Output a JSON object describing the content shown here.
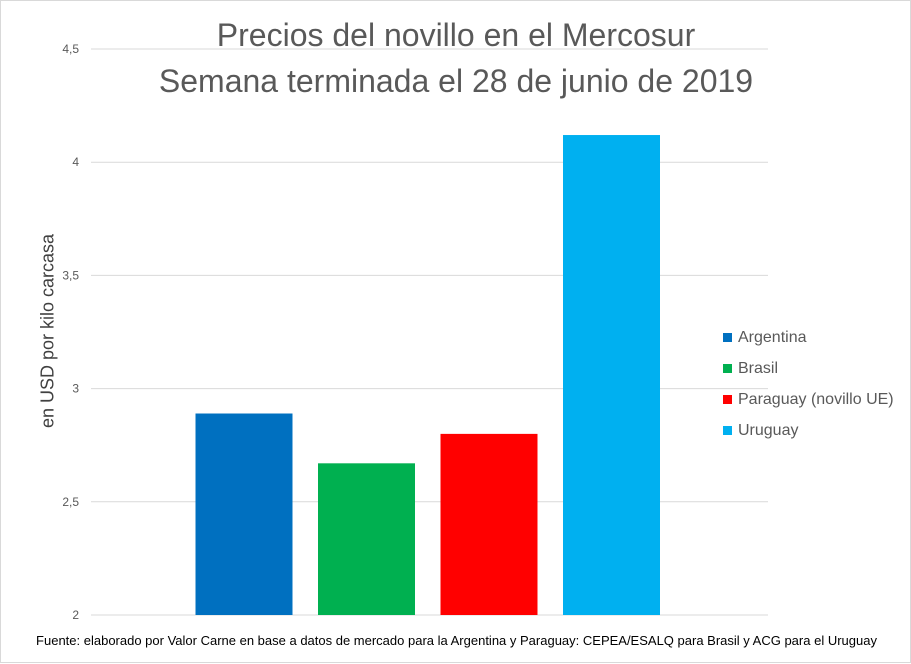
{
  "chart_data": {
    "type": "bar",
    "title_lines": [
      "Precios del novillo en el Mercosur",
      "Semana terminada el 28 de junio de 2019"
    ],
    "ylabel": "en USD por kilo carcasa",
    "xlabel": "",
    "ylim": [
      2,
      4.5
    ],
    "yticks": [
      2,
      2.5,
      3,
      3.5,
      4,
      4.5
    ],
    "ytick_labels": [
      "2",
      "2,5",
      "3",
      "3,5",
      "4",
      "4,5"
    ],
    "grid": true,
    "legend_position": "right",
    "categories": [
      "Argentina",
      "Brasil",
      "Paraguay (novillo UE)",
      "Uruguay"
    ],
    "values": [
      2.89,
      2.67,
      2.8,
      4.12
    ],
    "colors": [
      "#0070c0",
      "#00b050",
      "#ff0000",
      "#00b0f0"
    ]
  },
  "source_note": "Fuente: elaborado por Valor Carne en base a datos de mercado para la Argentina y Paraguay: CEPEA/ESALQ para Brasil y ACG para el Uruguay"
}
